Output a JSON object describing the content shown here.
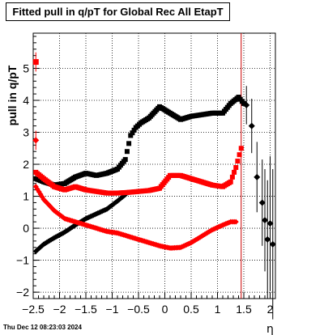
{
  "chart_data": {
    "type": "scatter",
    "title": "Fitted pull in q/pT for Global Rec All EtapT",
    "xlabel": "η",
    "ylabel": "pull in q/pT",
    "xlim": [
      -2.5,
      2.1
    ],
    "ylim": [
      -2.2,
      6.1
    ],
    "grid": true,
    "x_ticks": [
      -2.5,
      -2,
      -1.5,
      -1,
      -0.5,
      0,
      0.5,
      1,
      1.5,
      2
    ],
    "x_tick_labels": [
      "−2.5",
      "−2",
      "−1.5",
      "−1",
      "−0.5",
      "0",
      "0.5",
      "1",
      "1.5",
      "2"
    ],
    "y_ticks": [
      -2,
      -1,
      0,
      1,
      2,
      3,
      4,
      5
    ],
    "y_tick_labels": [
      "−2",
      "−1",
      "0",
      "1",
      "2",
      "3",
      "4",
      "5"
    ],
    "vertical_line_x": 1.45,
    "series": [
      {
        "color": "#000000",
        "marker": "square",
        "upper_branch_x": [
          -2.45,
          -2.3,
          -2.1,
          -1.9,
          -1.7,
          -1.5,
          -1.3,
          -1.1,
          -0.9,
          -0.75,
          -0.65,
          -0.55,
          -0.45,
          -0.3,
          -0.1,
          0.1,
          0.3,
          0.5,
          0.7,
          0.9,
          1.1,
          1.25,
          1.4,
          1.5
        ],
        "upper_branch_y": [
          1.55,
          1.45,
          1.35,
          1.4,
          1.6,
          1.72,
          1.65,
          1.72,
          1.85,
          2.15,
          2.9,
          3.15,
          3.3,
          3.45,
          3.8,
          3.6,
          3.4,
          3.5,
          3.55,
          3.6,
          3.6,
          3.9,
          4.1,
          3.9
        ],
        "lower_branch_x": [
          -2.45,
          -2.3,
          -2.1,
          -1.9,
          -1.7,
          -1.5,
          -1.3,
          -1.1,
          -0.9,
          -0.75
        ],
        "lower_branch_y": [
          -0.72,
          -0.5,
          -0.3,
          -0.12,
          0.1,
          0.3,
          0.45,
          0.6,
          0.85,
          1.05
        ],
        "tail_x": [
          1.55,
          1.65,
          1.75,
          1.85,
          1.9,
          1.95,
          2.0,
          2.05
        ],
        "tail_y": [
          3.85,
          3.2,
          1.6,
          0.8,
          0.25,
          -0.35,
          0.15,
          -0.5
        ]
      },
      {
        "color": "#ff0000",
        "marker": "square",
        "upper_branch_x": [
          -2.45,
          -2.3,
          -2.1,
          -1.9,
          -1.7,
          -1.5,
          -1.3,
          -1.1,
          -0.9,
          -0.7,
          -0.5,
          -0.3,
          -0.1,
          0.1,
          0.3,
          0.5,
          0.7,
          0.9,
          1.1,
          1.25,
          1.35,
          1.45
        ],
        "upper_branch_y": [
          1.75,
          1.55,
          1.3,
          1.2,
          1.3,
          1.2,
          1.15,
          1.1,
          1.1,
          1.12,
          1.15,
          1.18,
          1.25,
          1.65,
          1.65,
          1.55,
          1.45,
          1.35,
          1.3,
          1.45,
          1.9,
          2.5
        ],
        "lower_branch_x": [
          -2.45,
          -2.3,
          -2.1,
          -1.9,
          -1.7,
          -1.5,
          -1.3,
          -1.1,
          -0.9,
          -0.7,
          -0.5,
          -0.3,
          -0.1,
          0.1,
          0.3,
          0.5,
          0.7,
          0.9,
          1.1,
          1.25,
          1.35
        ],
        "lower_branch_y": [
          1.3,
          0.9,
          0.55,
          0.3,
          0.2,
          0.1,
          0.0,
          -0.1,
          -0.15,
          -0.25,
          -0.35,
          -0.45,
          -0.55,
          -0.62,
          -0.6,
          -0.45,
          -0.25,
          -0.05,
          0.1,
          0.2,
          0.2
        ],
        "edge_x": [
          -2.45,
          -2.45
        ],
        "edge_y": [
          5.2,
          2.75
        ]
      }
    ]
  },
  "footer": {
    "timestamp": "Thu Dec 12 08:23:03 2024"
  }
}
